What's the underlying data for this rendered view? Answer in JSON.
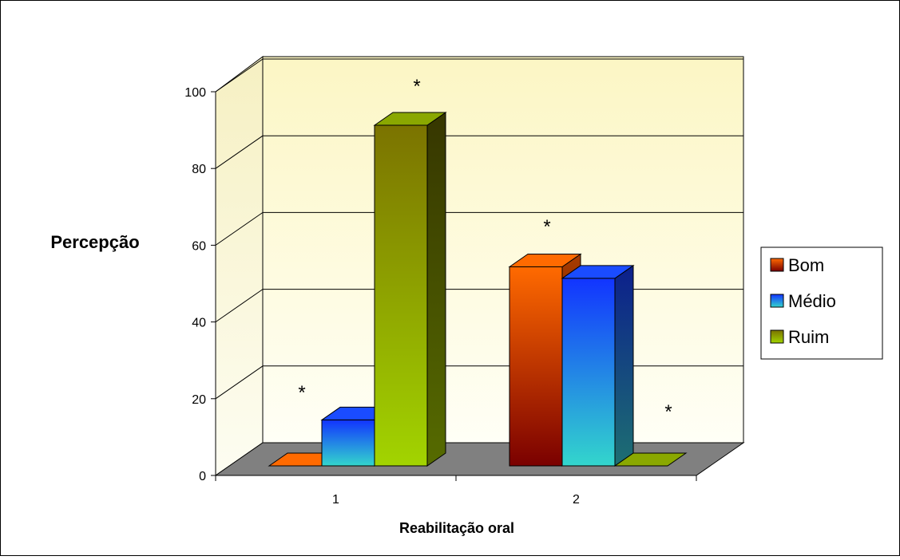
{
  "chart_data": {
    "type": "bar",
    "title": "",
    "xlabel": "Reabilitação oral",
    "ylabel": "Percepção",
    "categories": [
      "1",
      "2"
    ],
    "ylim": [
      0,
      100
    ],
    "yticks": [
      "0",
      "20",
      "40",
      "60",
      "80",
      "100"
    ],
    "grid": true,
    "legend_position": "right",
    "series": [
      {
        "name": "Bom",
        "values": [
          0,
          52
        ],
        "color": "#ff6a00"
      },
      {
        "name": "Médio",
        "values": [
          12,
          49
        ],
        "color": "#1a4cff"
      },
      {
        "name": "Ruim",
        "values": [
          89,
          0
        ],
        "color": "#8aa800"
      }
    ],
    "annotations": [
      "*",
      "*",
      "*",
      "*"
    ]
  }
}
